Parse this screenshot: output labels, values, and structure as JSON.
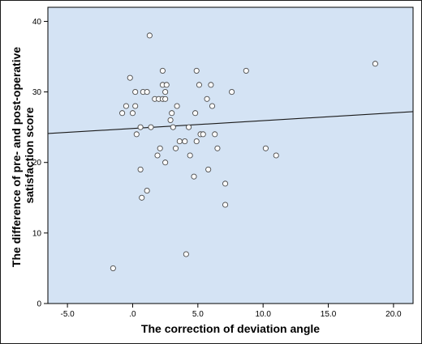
{
  "chart_data": {
    "type": "scatter",
    "xlabel": "The correction of deviation angle",
    "ylabel_lines": [
      "The difference of pre- and post-operative",
      "satisfaction score"
    ],
    "xlim": [
      -6.5,
      21.5
    ],
    "ylim": [
      0,
      42
    ],
    "x_ticks": [
      -5,
      0,
      5,
      10,
      15,
      20
    ],
    "x_tick_labels": [
      "-5.0",
      ".0",
      "5.0",
      "10.0",
      "15.0",
      "20.0"
    ],
    "y_ticks": [
      0,
      10,
      20,
      30,
      40
    ],
    "y_tick_labels": [
      "0",
      "10",
      "20",
      "30",
      "40"
    ],
    "grid": false,
    "fit_line": {
      "x": [
        -6.5,
        21.5
      ],
      "y": [
        24.1,
        27.2
      ]
    },
    "points": [
      {
        "x": 1.3,
        "y": 38
      },
      {
        "x": -0.2,
        "y": 32
      },
      {
        "x": 2.3,
        "y": 33
      },
      {
        "x": 4.9,
        "y": 33
      },
      {
        "x": 8.7,
        "y": 33
      },
      {
        "x": 18.6,
        "y": 34
      },
      {
        "x": 2.3,
        "y": 31
      },
      {
        "x": 2.6,
        "y": 31
      },
      {
        "x": 5.1,
        "y": 31
      },
      {
        "x": 6.0,
        "y": 31
      },
      {
        "x": 0.2,
        "y": 30
      },
      {
        "x": 0.8,
        "y": 30
      },
      {
        "x": 1.1,
        "y": 30
      },
      {
        "x": 2.5,
        "y": 30
      },
      {
        "x": 7.6,
        "y": 30
      },
      {
        "x": 1.7,
        "y": 29
      },
      {
        "x": 2.0,
        "y": 29
      },
      {
        "x": 2.3,
        "y": 29
      },
      {
        "x": 2.5,
        "y": 29
      },
      {
        "x": 5.7,
        "y": 29
      },
      {
        "x": -0.5,
        "y": 28
      },
      {
        "x": 0.2,
        "y": 28
      },
      {
        "x": 3.4,
        "y": 28
      },
      {
        "x": 6.1,
        "y": 28
      },
      {
        "x": -0.8,
        "y": 27
      },
      {
        "x": 0.0,
        "y": 27
      },
      {
        "x": 3.0,
        "y": 27
      },
      {
        "x": 4.8,
        "y": 27
      },
      {
        "x": 2.9,
        "y": 26
      },
      {
        "x": 0.6,
        "y": 25
      },
      {
        "x": 1.4,
        "y": 25
      },
      {
        "x": 3.1,
        "y": 25
      },
      {
        "x": 4.3,
        "y": 25
      },
      {
        "x": 0.3,
        "y": 24
      },
      {
        "x": 5.2,
        "y": 24
      },
      {
        "x": 5.4,
        "y": 24
      },
      {
        "x": 6.3,
        "y": 24
      },
      {
        "x": 3.6,
        "y": 23
      },
      {
        "x": 4.0,
        "y": 23
      },
      {
        "x": 4.9,
        "y": 23
      },
      {
        "x": 2.1,
        "y": 22
      },
      {
        "x": 3.3,
        "y": 22
      },
      {
        "x": 6.5,
        "y": 22
      },
      {
        "x": 10.2,
        "y": 22
      },
      {
        "x": 1.9,
        "y": 21
      },
      {
        "x": 4.4,
        "y": 21
      },
      {
        "x": 11.0,
        "y": 21
      },
      {
        "x": 2.5,
        "y": 20
      },
      {
        "x": 0.6,
        "y": 19
      },
      {
        "x": 5.8,
        "y": 19
      },
      {
        "x": 4.7,
        "y": 18
      },
      {
        "x": 7.1,
        "y": 17
      },
      {
        "x": 1.1,
        "y": 16
      },
      {
        "x": 0.7,
        "y": 15
      },
      {
        "x": 7.1,
        "y": 14
      },
      {
        "x": 4.1,
        "y": 7
      },
      {
        "x": -1.5,
        "y": 5
      }
    ]
  },
  "colors": {
    "plot_background": "#d4e3f4",
    "marker_fill": "#ffffff",
    "marker_stroke": "#4a4a4a",
    "fit_line": "#1a1a1a",
    "axis": "#000000"
  }
}
